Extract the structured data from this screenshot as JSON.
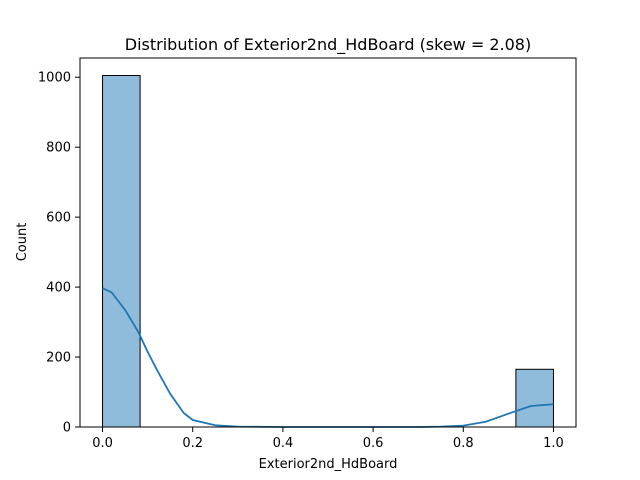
{
  "chart_data": {
    "type": "bar",
    "title": "Distribution of Exterior2nd_HdBoard (skew = 2.08)",
    "xlabel": "Exterior2nd_HdBoard",
    "ylabel": "Count",
    "xlim": [
      -0.05,
      1.05
    ],
    "ylim": [
      0,
      1055
    ],
    "xticks": [
      "0.0",
      "0.2",
      "0.4",
      "0.6",
      "0.8",
      "1.0"
    ],
    "yticks": [
      "0",
      "200",
      "400",
      "600",
      "800",
      "1000"
    ],
    "bins": [
      {
        "x0": 0.0,
        "x1": 0.0833,
        "count": 1005
      },
      {
        "x0": 0.9167,
        "x1": 1.0,
        "count": 165
      }
    ],
    "kde": {
      "x": [
        0.0,
        0.02,
        0.05,
        0.08,
        0.1,
        0.12,
        0.15,
        0.18,
        0.2,
        0.25,
        0.3,
        0.4,
        0.5,
        0.6,
        0.7,
        0.75,
        0.8,
        0.85,
        0.9,
        0.95,
        1.0
      ],
      "y": [
        397,
        385,
        335,
        270,
        215,
        165,
        95,
        40,
        20,
        5,
        1,
        0,
        0,
        0,
        0,
        1,
        4,
        15,
        38,
        60,
        65
      ]
    },
    "bar_color": "#8fbcdb",
    "bar_edge_color": "#000000",
    "kde_color": "#1f77b4",
    "grid": false
  }
}
